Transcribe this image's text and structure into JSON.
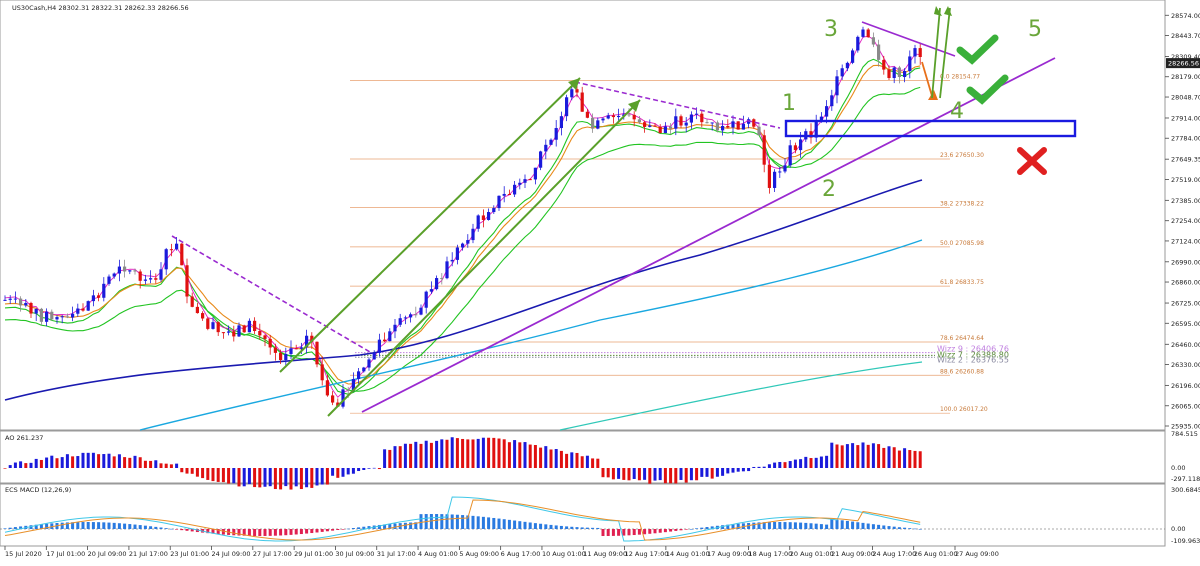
{
  "header": {
    "symbol_info": "US30Cash,H4  28302.31 28322.31 28262.33 28266.56"
  },
  "panes": {
    "ao_label": "AO 261.237",
    "macd_label": "ECS MACD (12,26,9)"
  },
  "chart_data": {
    "type": "candlestick",
    "price_axis": {
      "ticks": [
        28574.0,
        28443.7,
        28309.4,
        28179.0,
        28048.7,
        27914.0,
        27784.0,
        27649.35,
        27519.0,
        27385.0,
        27254.0,
        27124.0,
        26990.0,
        26860.0,
        26725.0,
        26595.0,
        26460.0,
        26330.0,
        26196.0,
        26065.0,
        25935.0
      ],
      "current_price": "28266.56",
      "range": [
        25935,
        28640
      ]
    },
    "time_axis": [
      "15 Jul 2020",
      "17 Jul 01:00",
      "20 Jul 09:00",
      "21 Jul 17:00",
      "23 Jul 01:00",
      "24 Jul 09:00",
      "27 Jul 17:00",
      "29 Jul 01:00",
      "30 Jul 09:00",
      "31 Jul 17:00",
      "4 Aug 01:00",
      "5 Aug 09:00",
      "6 Aug 17:00",
      "10 Aug 01:00",
      "11 Aug 09:00",
      "12 Aug 17:00",
      "14 Aug 01:00",
      "17 Aug 09:00",
      "18 Aug 17:00",
      "20 Aug 01:00",
      "21 Aug 09:00",
      "24 Aug 17:00",
      "26 Aug 01:00",
      "27 Aug 09:00"
    ],
    "fibonacci": [
      {
        "label": "0.0 28154.77",
        "value": 28154.77
      },
      {
        "label": "23.6 27650.30",
        "value": 27650.3
      },
      {
        "label": "38.2 27338.22",
        "value": 27338.22
      },
      {
        "label": "50.0 27085.98",
        "value": 27085.98
      },
      {
        "label": "61.8 26833.75",
        "value": 26833.75
      },
      {
        "label": "78.6 26474.64",
        "value": 26474.64
      },
      {
        "label": "88.6 26260.88",
        "value": 26260.88
      },
      {
        "label": "100.0 26017.20",
        "value": 26017.2
      }
    ],
    "wizz_labels": [
      "Wizz 9 : 26406.76",
      "Wizz 7 : 26388.80",
      "Wizz 2 : 26376.55"
    ],
    "wave_labels": [
      "1",
      "2",
      "3",
      "4",
      "5"
    ],
    "ao_axis": [
      "784.515",
      "0.00",
      "-297.118"
    ],
    "macd_axis": [
      "300.6845",
      "0.00",
      "-109.9633"
    ],
    "colors": {
      "bull": "#1a1adb",
      "bear": "#e01010",
      "neutral": "#8a8a8a",
      "ema_fast": "#22c422",
      "ema_slow": "#e88a1a",
      "ma_blue": "#1a1ab0",
      "ma_cyan": "#1aa8e0",
      "trend_purple": "#9a2ad0",
      "channel_green": "#5aa02a",
      "box_blue": "#1a1ae0"
    }
  }
}
